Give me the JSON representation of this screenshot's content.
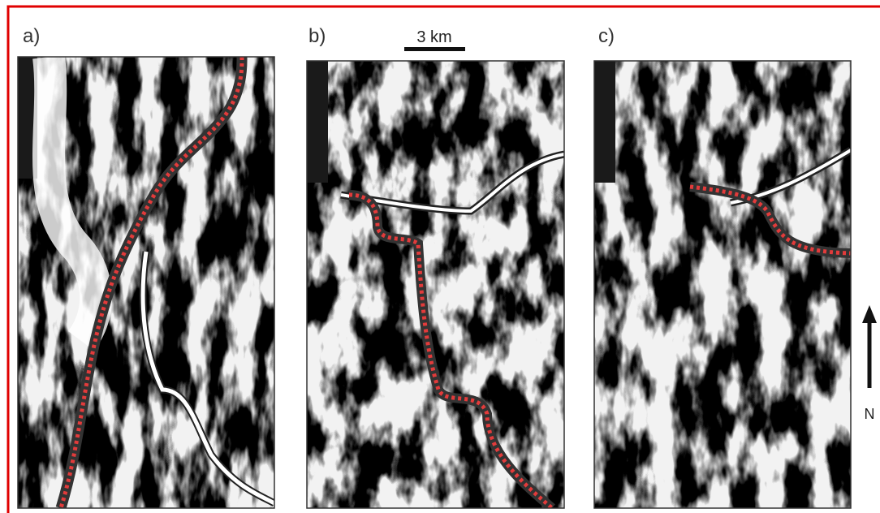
{
  "panels": [
    {
      "label": "a)"
    },
    {
      "label": "b)"
    },
    {
      "label": "c)"
    }
  ],
  "scale_bar": {
    "label": "3 km"
  },
  "north_arrow": {
    "label": "N"
  }
}
